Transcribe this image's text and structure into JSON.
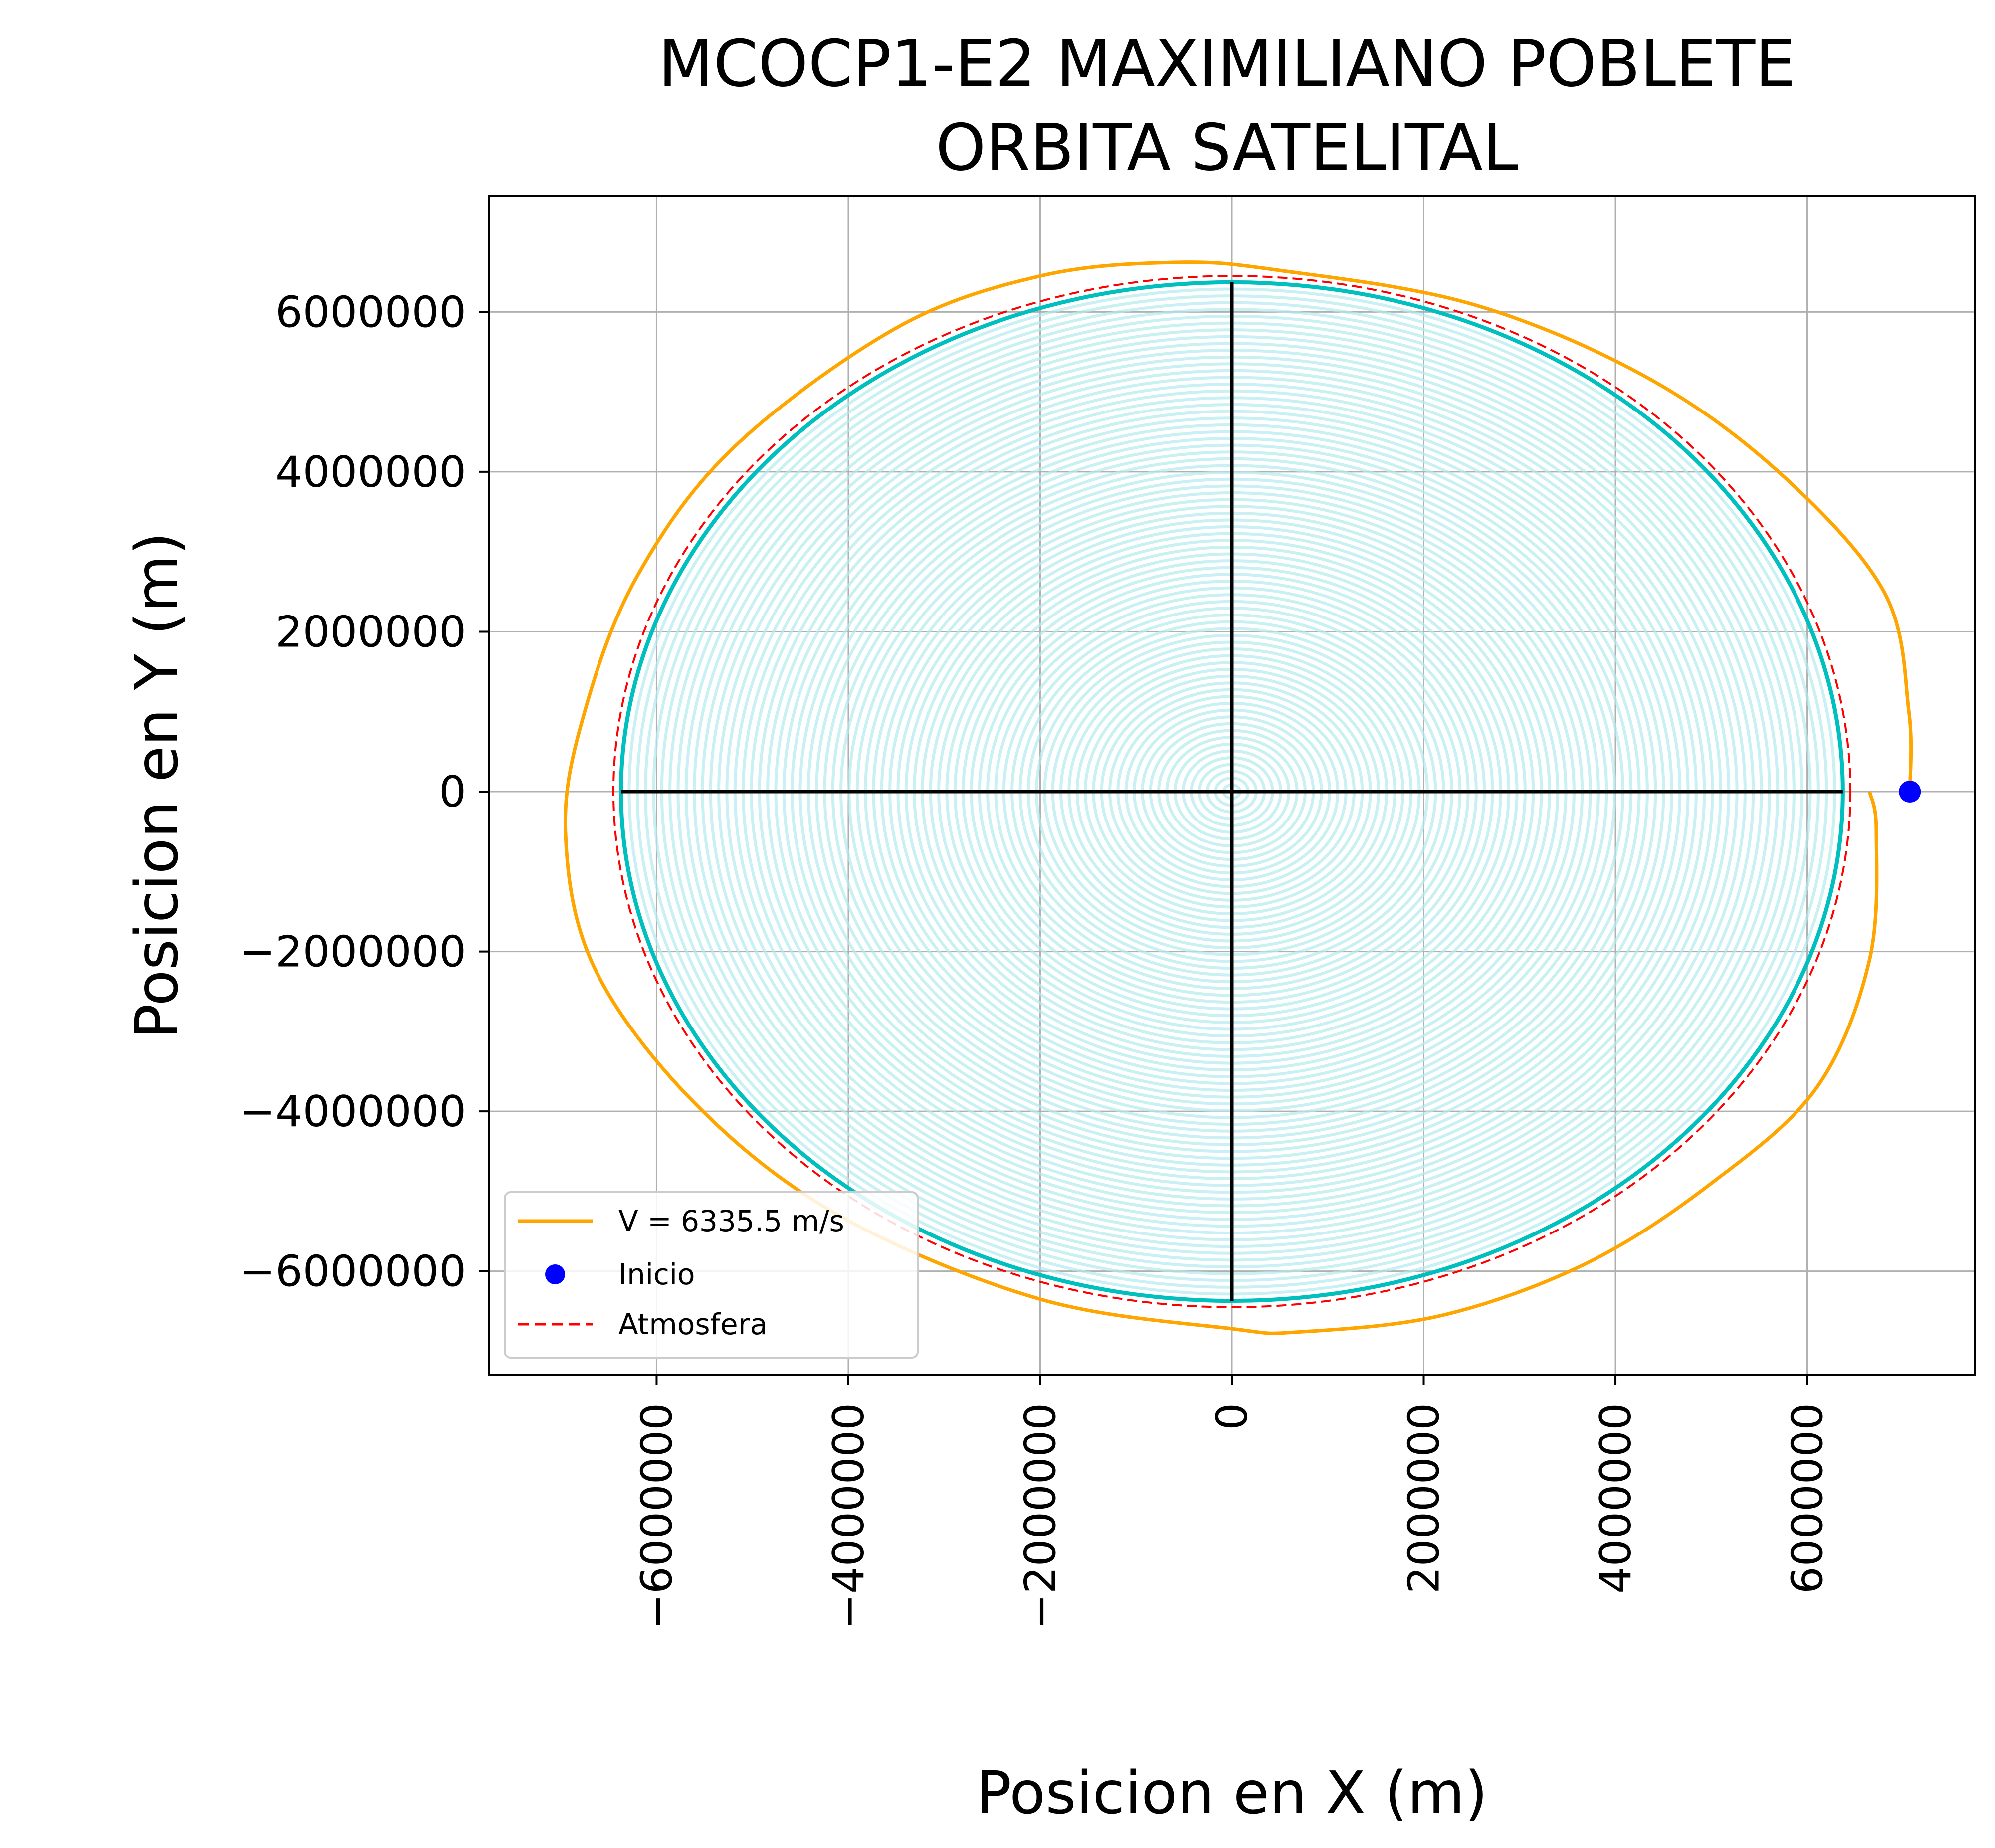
{
  "chart_data": {
    "type": "line",
    "title": "MCOCP1-E2 MAXIMILIANO POBLETE",
    "subtitle": "ORBITA SATELITAL",
    "xlabel": "Posicion en X (m)",
    "ylabel": "Posicion en Y (m)",
    "xlim": [
      -7750000,
      7750000
    ],
    "ylim": [
      -7300000,
      7450000
    ],
    "xticks": [
      -6000000,
      -4000000,
      -2000000,
      0,
      2000000,
      4000000,
      6000000
    ],
    "yticks": [
      -6000000,
      -4000000,
      -2000000,
      0,
      2000000,
      4000000,
      6000000
    ],
    "xtick_labels": [
      "−6000000",
      "−4000000",
      "−2000000",
      "0",
      "2000000",
      "4000000",
      "6000000"
    ],
    "ytick_labels": [
      "−6000000",
      "−4000000",
      "−2000000",
      "0",
      "2000000",
      "4000000",
      "6000000"
    ],
    "grid": true,
    "legend_position": "lower-left",
    "earth": {
      "radius": 6371000,
      "ring_count": 75,
      "fill_color": "#b2ebef",
      "edge_color": "#00bfbf",
      "axis_color": "#000000"
    },
    "series": [
      {
        "name": "V = 6335.5 m/s",
        "color": "#ffa500",
        "style": "solid",
        "points": [
          [
            7070000,
            0
          ],
          [
            7060000,
            1000000
          ],
          [
            6800000,
            2500000
          ],
          [
            5700000,
            4000000
          ],
          [
            4300000,
            5200000
          ],
          [
            2500000,
            6100000
          ],
          [
            500000,
            6520000
          ],
          [
            -600000,
            6620000
          ],
          [
            -2000000,
            6450000
          ],
          [
            -3500000,
            5800000
          ],
          [
            -5200000,
            4300000
          ],
          [
            -6200000,
            2700000
          ],
          [
            -6750000,
            1000000
          ],
          [
            -6950000,
            -500000
          ],
          [
            -6650000,
            -2200000
          ],
          [
            -5600000,
            -3900000
          ],
          [
            -4100000,
            -5300000
          ],
          [
            -2000000,
            -6350000
          ],
          [
            0,
            -6720000
          ],
          [
            700000,
            -6760000
          ],
          [
            2200000,
            -6550000
          ],
          [
            3700000,
            -5900000
          ],
          [
            5000000,
            -4900000
          ],
          [
            6100000,
            -3700000
          ],
          [
            6650000,
            -2100000
          ],
          [
            6720000,
            -500000
          ],
          [
            6650000,
            0
          ]
        ]
      },
      {
        "name": "Inicio",
        "color": "#0000ff",
        "style": "marker",
        "points": [
          [
            7070000,
            0
          ]
        ]
      },
      {
        "name": "Atmosfera",
        "color": "#ff0000",
        "style": "dashed",
        "radius": 6450000
      }
    ]
  }
}
